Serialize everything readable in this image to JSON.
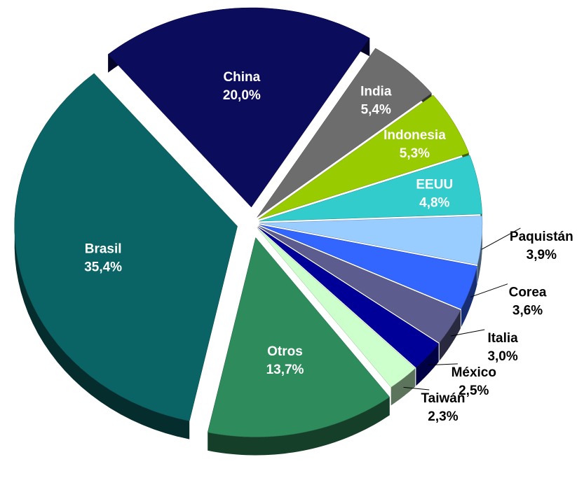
{
  "chart_data": {
    "type": "pie",
    "categories": [
      "China",
      "India",
      "Indonesia",
      "EEUU",
      "Paquistán",
      "Corea",
      "Italia",
      "México",
      "Taiwán",
      "Otros",
      "Brasil"
    ],
    "values": [
      20.0,
      5.4,
      5.3,
      4.8,
      3.9,
      3.6,
      3.0,
      2.5,
      2.3,
      13.7,
      35.4
    ],
    "value_labels": [
      "20,0%",
      "5,4%",
      "5,3%",
      "4,8%",
      "3,9%",
      "3,6%",
      "3,0%",
      "2,5%",
      "2,3%",
      "13,7%",
      "35,4%"
    ],
    "colors": [
      "#0c0c5c",
      "#6d6d6d",
      "#99cc00",
      "#33cccc",
      "#99ccff",
      "#3366ff",
      "#5c5c8f",
      "#000099",
      "#ccffcc",
      "#2e8b5c",
      "#0a6466"
    ]
  }
}
